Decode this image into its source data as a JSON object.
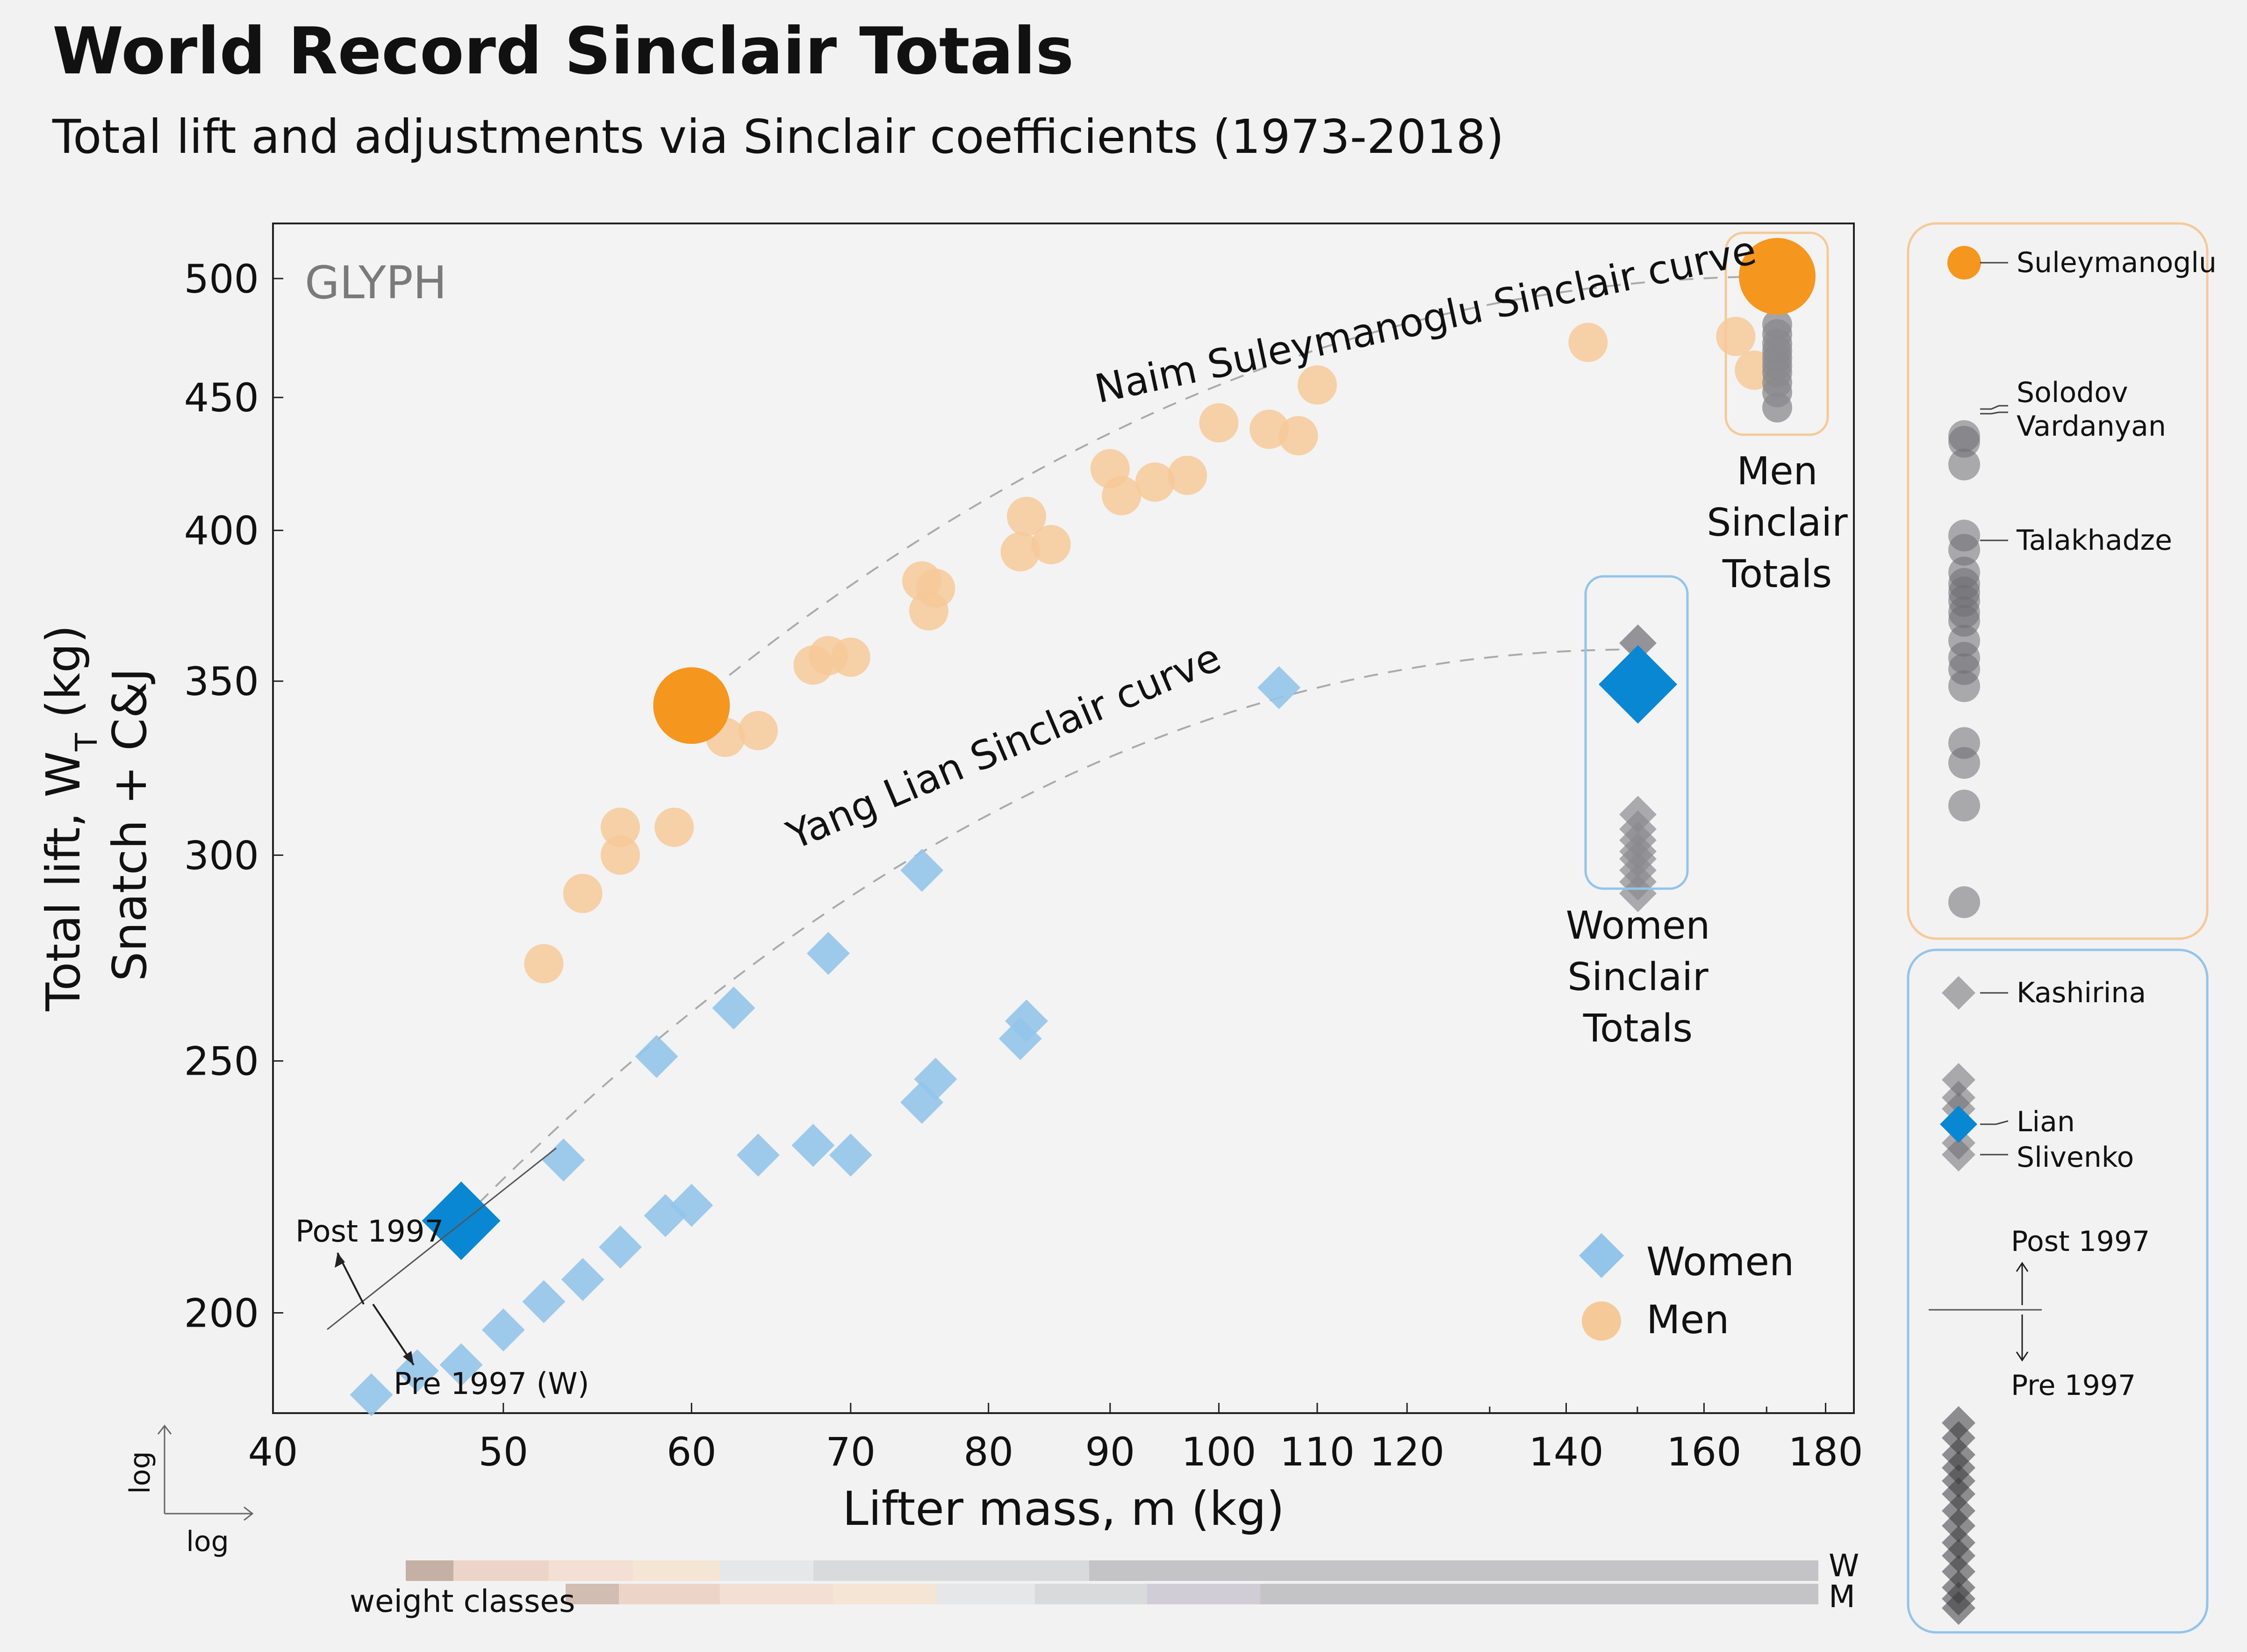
{
  "header": {
    "title": "World Record Sinclair Totals",
    "subtitle": "Total lift and adjustments via Sinclair coefficients (1973-2018)"
  },
  "watermark": "GLYPH",
  "colors": {
    "women": "#0a87d2",
    "women_light": "#93c4ea",
    "men": "#f5961e",
    "men_light": "#f6c999",
    "gray": "#8a8a8e",
    "panel_men_border": "#f6c999",
    "panel_women_border": "#93c4ea"
  },
  "chart_data": {
    "type": "scatter",
    "scale": "log-log",
    "xlabel": "Lifter mass, m (kg)",
    "ylabel_line1": "Total lift, W",
    "ylabel_sub": "T",
    "ylabel_unit": " (kg)",
    "ylabel_line2": "Snatch + C&J",
    "xlim": [
      40,
      185
    ],
    "ylim": [
      183,
      525
    ],
    "xticks": [
      40,
      50,
      60,
      70,
      80,
      90,
      100,
      110,
      120,
      140,
      160,
      180
    ],
    "xminor": [
      130,
      150,
      170
    ],
    "yticks": [
      200,
      250,
      300,
      350,
      400,
      450,
      500
    ],
    "series": [
      {
        "name": "Women",
        "marker": "diamond",
        "points": [
          {
            "x": 44,
            "y": 186
          },
          {
            "x": 46,
            "y": 190
          },
          {
            "x": 48,
            "y": 191
          },
          {
            "x": 50,
            "y": 197
          },
          {
            "x": 52,
            "y": 202
          },
          {
            "x": 54,
            "y": 206
          },
          {
            "x": 56,
            "y": 212
          },
          {
            "x": 58.5,
            "y": 218
          },
          {
            "x": 60,
            "y": 220
          },
          {
            "x": 64,
            "y": 230
          },
          {
            "x": 67.5,
            "y": 232
          },
          {
            "x": 70,
            "y": 230
          },
          {
            "x": 75,
            "y": 241
          },
          {
            "x": 76,
            "y": 246
          },
          {
            "x": 82.5,
            "y": 255
          },
          {
            "x": 83,
            "y": 259
          },
          {
            "x": 53,
            "y": 229
          },
          {
            "x": 58,
            "y": 251
          },
          {
            "x": 62.5,
            "y": 262
          },
          {
            "x": 68.5,
            "y": 275
          },
          {
            "x": 75,
            "y": 296
          },
          {
            "x": 106,
            "y": 348
          }
        ]
      },
      {
        "name": "Men",
        "marker": "circle",
        "points": [
          {
            "x": 52,
            "y": 272.5
          },
          {
            "x": 54,
            "y": 290
          },
          {
            "x": 56,
            "y": 307.5
          },
          {
            "x": 56,
            "y": 300
          },
          {
            "x": 59,
            "y": 307.5
          },
          {
            "x": 62,
            "y": 333
          },
          {
            "x": 64,
            "y": 335
          },
          {
            "x": 67.5,
            "y": 355
          },
          {
            "x": 68.5,
            "y": 358
          },
          {
            "x": 70,
            "y": 357.5
          },
          {
            "x": 75,
            "y": 382.5
          },
          {
            "x": 76,
            "y": 380
          },
          {
            "x": 75.5,
            "y": 372.5
          },
          {
            "x": 82.5,
            "y": 392.5
          },
          {
            "x": 83,
            "y": 405
          },
          {
            "x": 85,
            "y": 395
          },
          {
            "x": 90,
            "y": 422.5
          },
          {
            "x": 91,
            "y": 412.5
          },
          {
            "x": 94,
            "y": 417.5
          },
          {
            "x": 97,
            "y": 420
          },
          {
            "x": 100,
            "y": 440
          },
          {
            "x": 105,
            "y": 437.5
          },
          {
            "x": 108,
            "y": 435
          },
          {
            "x": 110,
            "y": 455
          },
          {
            "x": 143,
            "y": 472.5
          },
          {
            "x": 165,
            "y": 475
          },
          {
            "x": 168,
            "y": 461
          }
        ]
      }
    ],
    "highlights": [
      {
        "name": "Lian",
        "series": "Women",
        "x": 48,
        "y": 217
      },
      {
        "name": "Suleymanoglu",
        "series": "Men",
        "x": 60,
        "y": 342.5
      }
    ],
    "sinclair_totals": {
      "women": {
        "highlight": 349,
        "top": 362,
        "gray": [
          311,
          307,
          304,
          301,
          299,
          296,
          293,
          290
        ]
      },
      "men": {
        "highlight": 501,
        "gray": [
          480,
          476,
          472,
          469,
          466,
          463,
          460,
          456,
          452,
          446
        ]
      }
    },
    "curves": [
      {
        "name": "Naim Suleymanoglu Sinclair curve",
        "x0": 60,
        "y0": 342.5,
        "x1": 174,
        "y1": 501
      },
      {
        "name": "Yang Lian Sinclair curve",
        "x0": 48,
        "y0": 217,
        "x1": 151,
        "y1": 360
      }
    ],
    "annotations": {
      "curve_men": "Naim Suleymanoglu Sinclair curve",
      "curve_women": "Yang Lian Sinclair curve",
      "men_totals": [
        "Men",
        "Sinclair",
        "Totals"
      ],
      "women_totals": [
        "Women",
        "Sinclair",
        "Totals"
      ],
      "post": "Post 1997",
      "pre": "Pre 1997 (W)"
    },
    "legend": {
      "women": "Women",
      "men": "Men",
      "placement": "bottom-right"
    },
    "axis_hint": {
      "x": "log",
      "y": "log"
    },
    "weight_classes": {
      "label": "weight classes",
      "W": "W",
      "M": "M",
      "w_colors": [
        "#c4b0a5",
        "#ecd5c8",
        "#f3dfd3",
        "#f4e5d5",
        "#e5e7e9",
        "#d8dadc",
        "#c4c4c6"
      ],
      "m_colors": [
        "#d2bdb3",
        "#ecd5c8",
        "#f3dfd3",
        "#f4e5d5",
        "#e5e7e9",
        "#d8dadc",
        "#d0cdd6",
        "#c4c4c6"
      ]
    },
    "side_panel_men": {
      "labels": [
        "Suleymanoglu",
        "Solodov",
        "Vardanyan",
        "Talakhadze"
      ],
      "values": [
        501,
        440,
        438,
        378,
        430,
        405,
        400,
        392,
        388,
        385,
        382,
        375,
        368,
        362,
        358,
        352,
        332,
        325,
        310,
        276
      ]
    },
    "side_panel_women": {
      "labels": [
        "Kashirina",
        "Lian",
        "Slivenko"
      ],
      "post_label": "Post 1997",
      "pre_label": "Pre 1997"
    }
  }
}
